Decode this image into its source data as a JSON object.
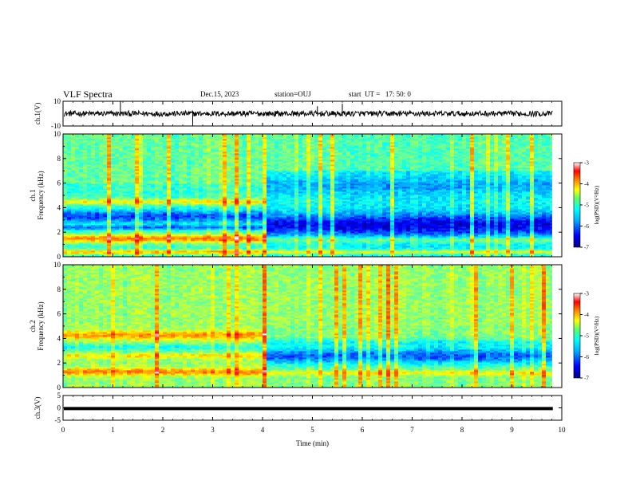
{
  "header": {
    "title": "VLF Spectra",
    "date": "Dec.15, 2023",
    "station": "station=OUJ",
    "start": "start  UT =   17: 50: 0"
  },
  "chart_data": [
    {
      "type": "line",
      "panel": "ch1-waveform",
      "ylabel": "ch.1(V)",
      "ylim": [
        -10,
        10
      ],
      "yticks": [
        "10",
        "-10"
      ],
      "xlim": [
        0,
        10
      ]
    },
    {
      "type": "heatmap",
      "panel": "ch1-spectrogram",
      "ylabel_channel": "ch.1",
      "ylabel": "Frequency (kHz)",
      "xlim": [
        0,
        10
      ],
      "ylim": [
        0,
        10
      ],
      "yticks": [
        "0",
        "2",
        "4",
        "6",
        "8",
        "10"
      ],
      "data_end_min": 9.8,
      "change_at_min": 4.05,
      "colorbar": {
        "label": "log(PSD)(V²/Hz)",
        "ticks": [
          "-3",
          "-4",
          "-5",
          "-6",
          "-7"
        ],
        "range": [
          -7,
          -3
        ]
      }
    },
    {
      "type": "heatmap",
      "panel": "ch2-spectrogram",
      "ylabel_channel": "ch.2",
      "ylabel": "Frequency (kHz)",
      "xlim": [
        0,
        10
      ],
      "ylim": [
        0,
        10
      ],
      "yticks": [
        "0",
        "2",
        "4",
        "6",
        "8",
        "10"
      ],
      "data_end_min": 9.8,
      "change_at_min": 4.05,
      "colorbar": {
        "label": "log(PSD)(V²/Hz)",
        "ticks": [
          "-3",
          "-4",
          "-5",
          "-6",
          "-7"
        ],
        "range": [
          -7,
          -3
        ]
      }
    },
    {
      "type": "line",
      "panel": "ch3-waveform",
      "ylabel": "ch.3(V)",
      "ylim": [
        -5,
        5
      ],
      "yticks": [
        "5",
        "0",
        "-5"
      ],
      "xlim": [
        0,
        10
      ],
      "values_approx": [
        -0.3
      ]
    }
  ],
  "xaxis": {
    "label": "Time (min)",
    "ticks": [
      "0",
      "1",
      "2",
      "3",
      "4",
      "5",
      "6",
      "7",
      "8",
      "9",
      "10"
    ]
  },
  "colors": {
    "colormap": [
      "#00007f",
      "#0000ff",
      "#0090ff",
      "#00ffff",
      "#80ff80",
      "#ffff00",
      "#ff8000",
      "#ff0000",
      "#ffffff"
    ]
  }
}
